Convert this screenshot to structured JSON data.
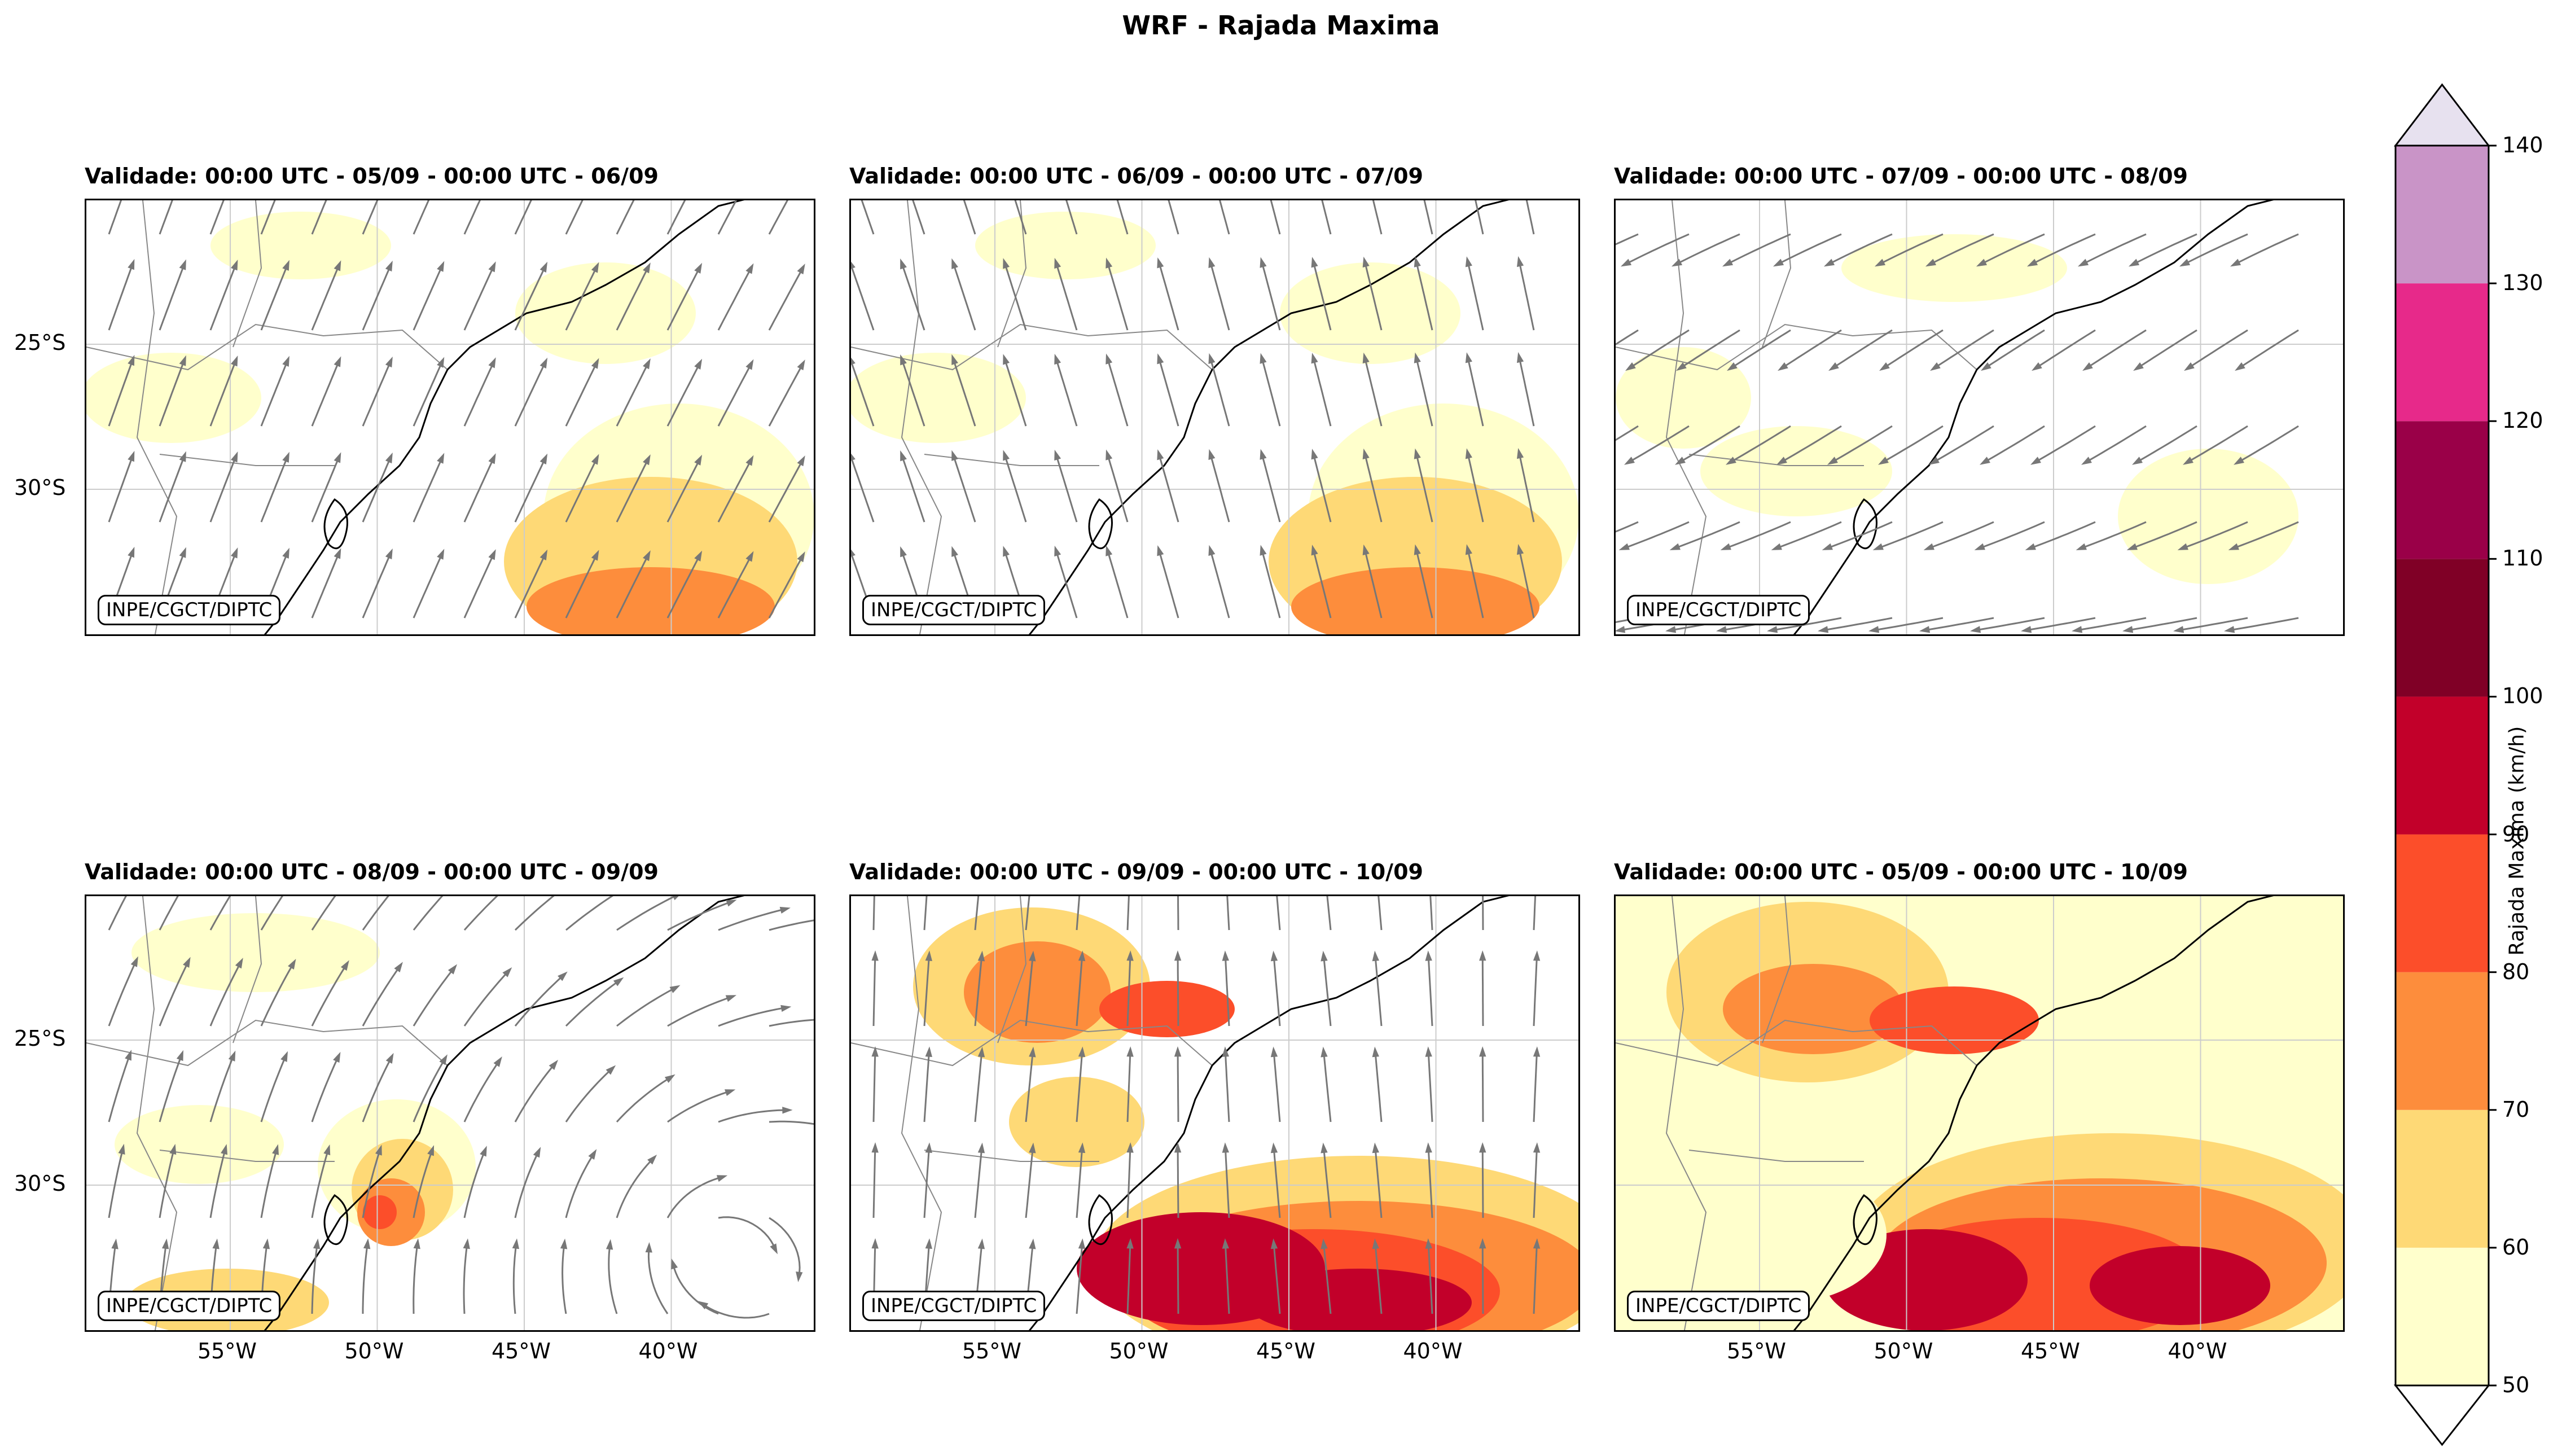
{
  "title": "WRF - Rajada Maxima",
  "badge": "INPE/CGCT/DIPTC",
  "lat_labels": [
    "25°S",
    "30°S"
  ],
  "lon_labels": [
    "55°W",
    "50°W",
    "45°W",
    "40°W"
  ],
  "panels": [
    {
      "title": "Validade: 00:00 UTC - 05/09 - 00:00 UTC - 06/09",
      "intensity": 1,
      "flow": "ne"
    },
    {
      "title": "Validade: 00:00 UTC - 06/09 - 00:00 UTC - 07/09",
      "intensity": 1,
      "flow": "nw"
    },
    {
      "title": "Validade: 00:00 UTC - 07/09 - 00:00 UTC - 08/09",
      "intensity": 0,
      "flow": "sw"
    },
    {
      "title": "Validade: 00:00 UTC - 08/09 - 00:00 UTC - 09/09",
      "intensity": 2,
      "flow": "cyclone"
    },
    {
      "title": "Validade: 00:00 UTC - 09/09 - 00:00 UTC - 10/09",
      "intensity": 3,
      "flow": "n"
    },
    {
      "title": "Validade: 00:00 UTC - 05/09 - 00:00 UTC - 10/09",
      "intensity": 4,
      "flow": "none"
    }
  ],
  "colorbar": {
    "label": "Rajada Maxima (km/h)",
    "ticks": [
      "50",
      "60",
      "70",
      "80",
      "90",
      "100",
      "110",
      "120",
      "130",
      "140"
    ],
    "levels": [
      50,
      60,
      70,
      80,
      90,
      100,
      110,
      120,
      130,
      140
    ],
    "colors": [
      "#ffffcc",
      "#fed976",
      "#fd8d3c",
      "#fc4e2a",
      "#c2002a",
      "#800026",
      "#9a0048",
      "#e7298a",
      "#c994c7"
    ],
    "over_color": "#e7e1ef",
    "under_color": "#ffffff"
  },
  "colors": {
    "streamline": "#777777",
    "coast": "#000000",
    "border": "#888888",
    "grid": "#cccccc"
  }
}
